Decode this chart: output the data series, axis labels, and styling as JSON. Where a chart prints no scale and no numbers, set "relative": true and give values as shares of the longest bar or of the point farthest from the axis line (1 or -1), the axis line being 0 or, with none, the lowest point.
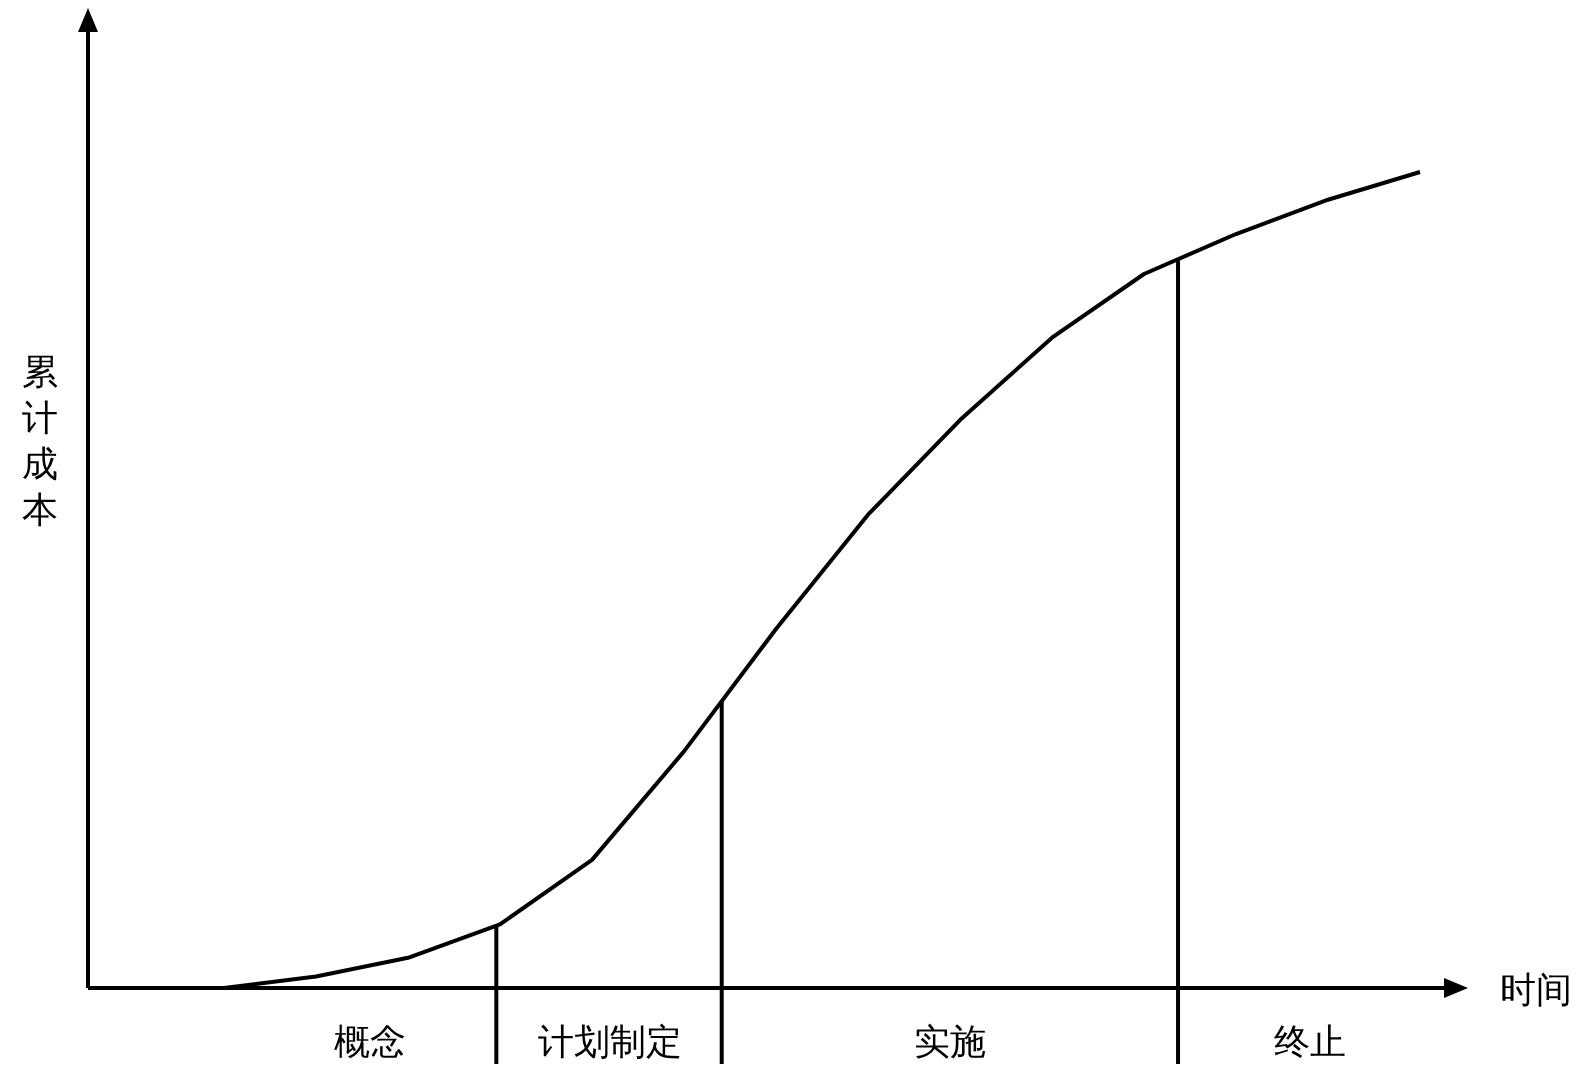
{
  "chart_data": {
    "type": "line",
    "relative": true,
    "xlabel": "时间",
    "ylabel": "累计成本",
    "marker": "none",
    "line_style": "solid",
    "categories": [
      null,
      null,
      null,
      null,
      null,
      null,
      null,
      null,
      null,
      null,
      null,
      null,
      null,
      null
    ],
    "series": [
      {
        "color": "#000000",
        "values": [
          0,
          0.014,
          0.037,
          0.078,
          0.157,
          0.29,
          0.44,
          0.58,
          0.696,
          0.797,
          0.875,
          0.924,
          0.966,
          1
        ]
      }
    ],
    "annotations": [
      "概念",
      "计划制定",
      "实施",
      "终止"
    ]
  }
}
